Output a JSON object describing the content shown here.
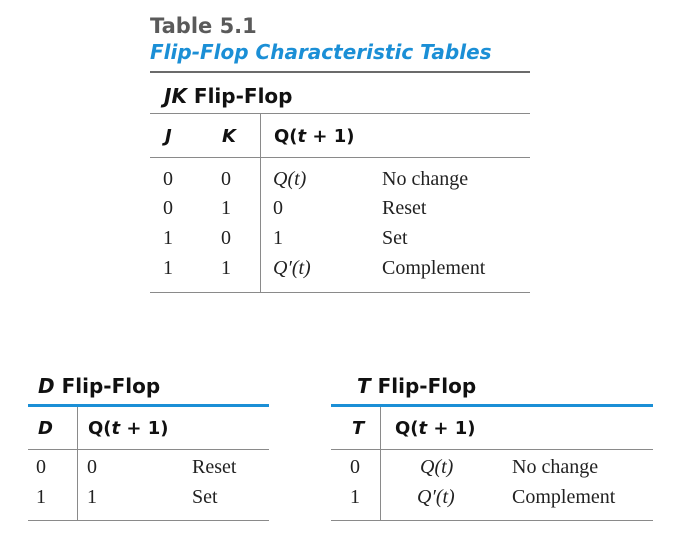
{
  "table_number": "Table 5.1",
  "table_title": "Flip-Flop Characteristic Tables",
  "jk": {
    "name_italic": "JK",
    "name_rest": " Flip-Flop",
    "headers": {
      "j": "J",
      "k": "K",
      "q_pre": "Q(",
      "q_t": "t",
      "q_post": " + 1)"
    },
    "rows": [
      {
        "j": "0",
        "k": "0",
        "q": "Q(t)",
        "desc": "No change"
      },
      {
        "j": "0",
        "k": "1",
        "q": "0",
        "desc": "Reset"
      },
      {
        "j": "1",
        "k": "0",
        "q": "1",
        "desc": "Set"
      },
      {
        "j": "1",
        "k": "1",
        "q": "Q′(t)",
        "desc": "Complement"
      }
    ]
  },
  "d": {
    "name_italic": "D",
    "name_rest": " Flip-Flop",
    "headers": {
      "d": "D",
      "q_pre": "Q(",
      "q_t": "t",
      "q_post": " + 1)"
    },
    "rows": [
      {
        "d": "0",
        "q": "0",
        "desc": "Reset"
      },
      {
        "d": "1",
        "q": "1",
        "desc": "Set"
      }
    ]
  },
  "t": {
    "name_italic": "T",
    "name_rest": " Flip-Flop",
    "headers": {
      "t": "T",
      "q_pre": "Q(",
      "q_t": "t",
      "q_post": " + 1)"
    },
    "rows": [
      {
        "t": "0",
        "q": "Q(t)",
        "desc": "No change"
      },
      {
        "t": "1",
        "q": "Q′(t)",
        "desc": "Complement"
      }
    ]
  }
}
